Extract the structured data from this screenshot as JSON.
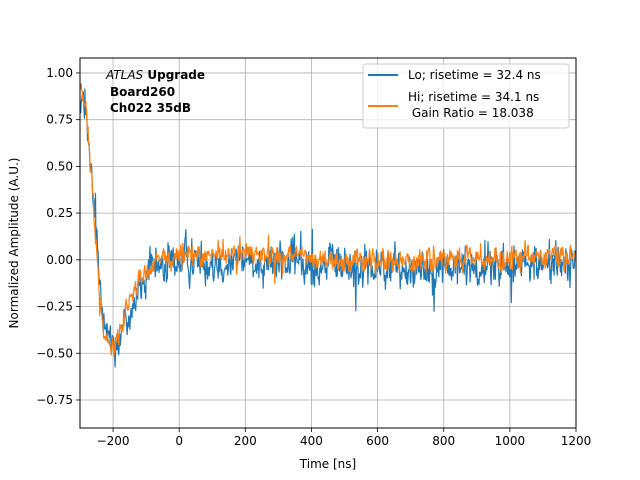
{
  "chart_data": {
    "type": "line",
    "title": "",
    "xlabel": "Time [ns]",
    "ylabel": "Normalized Amplitude (A.U.)",
    "xlim": [
      -300,
      1200
    ],
    "ylim": [
      -0.9,
      1.08
    ],
    "grid": true,
    "x_ticks": [
      -200,
      0,
      200,
      400,
      600,
      800,
      1000,
      1200
    ],
    "x_tick_labels": [
      "−200",
      "0",
      "200",
      "400",
      "600",
      "800",
      "1000",
      "1200"
    ],
    "y_ticks": [
      -0.75,
      -0.5,
      -0.25,
      0.0,
      0.25,
      0.5,
      0.75,
      1.0
    ],
    "y_tick_labels": [
      "−0.75",
      "−0.50",
      "−0.25",
      "0.00",
      "0.25",
      "0.50",
      "0.75",
      "1.00"
    ],
    "legend_position": "top-right",
    "annotation": {
      "experiment_italic": "ATLAS",
      "experiment_bold": " Upgrade",
      "line2": "Board260",
      "line3": "Ch022 35dB"
    },
    "series": [
      {
        "name": "Lo; risetime = 32.4 ns",
        "color": "#1f77b4",
        "noise": 0.1,
        "envelope": [
          [
            -295,
            0.88
          ],
          [
            -280,
            0.72
          ],
          [
            -265,
            0.42
          ],
          [
            -250,
            0.12
          ],
          [
            -240,
            -0.12
          ],
          [
            -225,
            -0.3
          ],
          [
            -210,
            -0.42
          ],
          [
            -195,
            -0.45
          ],
          [
            -180,
            -0.42
          ],
          [
            -165,
            -0.35
          ],
          [
            -150,
            -0.28
          ],
          [
            -130,
            -0.2
          ],
          [
            -110,
            -0.12
          ],
          [
            -90,
            -0.08
          ],
          [
            -60,
            -0.04
          ],
          [
            0,
            0.0
          ],
          [
            200,
            0.0
          ],
          [
            400,
            -0.02
          ],
          [
            600,
            -0.05
          ],
          [
            800,
            -0.04
          ],
          [
            1000,
            -0.03
          ],
          [
            1200,
            -0.01
          ]
        ]
      },
      {
        "name": "Hi; risetime = 34.1 ns",
        "name_line2": " Gain Ratio = 18.038",
        "color": "#ff7f0e",
        "noise": 0.055,
        "envelope": [
          [
            -295,
            0.92
          ],
          [
            -282,
            0.78
          ],
          [
            -268,
            0.5
          ],
          [
            -255,
            0.2
          ],
          [
            -245,
            -0.1
          ],
          [
            -232,
            -0.3
          ],
          [
            -218,
            -0.42
          ],
          [
            -205,
            -0.46
          ],
          [
            -190,
            -0.43
          ],
          [
            -175,
            -0.36
          ],
          [
            -155,
            -0.25
          ],
          [
            -130,
            -0.14
          ],
          [
            -100,
            -0.07
          ],
          [
            -60,
            0.0
          ],
          [
            0,
            0.02
          ],
          [
            200,
            0.04
          ],
          [
            400,
            0.0
          ],
          [
            600,
            -0.01
          ],
          [
            800,
            0.0
          ],
          [
            1000,
            0.01
          ],
          [
            1200,
            0.02
          ]
        ]
      }
    ]
  }
}
